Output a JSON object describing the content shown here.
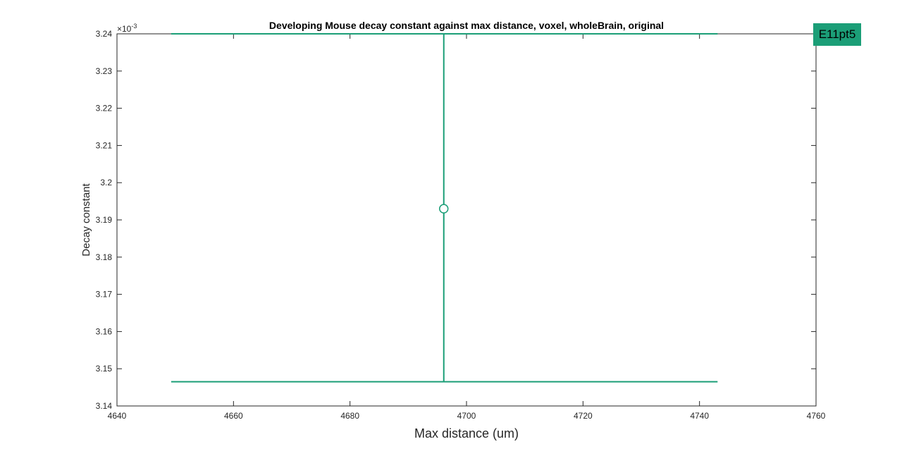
{
  "chart_data": {
    "type": "scatter",
    "title": "Developing Mouse decay constant against max distance, voxel, wholeBrain, original",
    "xlabel": "Max distance (um)",
    "ylabel": "Decay constant",
    "y_exponent_label": "×10",
    "y_exponent_power": "-3",
    "xlim": [
      4640,
      4760
    ],
    "ylim": [
      0.00314,
      0.00324
    ],
    "x_ticks": [
      4640,
      4660,
      4680,
      4700,
      4720,
      4740,
      4760
    ],
    "x_tick_labels": [
      "4640",
      "4660",
      "4680",
      "4700",
      "4720",
      "4740",
      "4760"
    ],
    "y_ticks": [
      0.00314,
      0.00315,
      0.00316,
      0.00317,
      0.00318,
      0.00319,
      0.0032,
      0.00321,
      0.00322,
      0.00323,
      0.00324
    ],
    "y_tick_labels": [
      "3.14",
      "3.15",
      "3.16",
      "3.17",
      "3.18",
      "3.19",
      "3.2",
      "3.21",
      "3.22",
      "3.23",
      "3.24"
    ],
    "grid": false,
    "legend_position": "top-right outside",
    "series": [
      {
        "name": "E11pt5",
        "color": "#1b9e77",
        "marker": "circle",
        "x": 4696.1,
        "y": 0.003193,
        "y_error_upper": 0.00324,
        "y_error_lower": 0.0031465,
        "x_error_lower": 4649.3,
        "x_error_upper": 4743.1
      }
    ]
  }
}
